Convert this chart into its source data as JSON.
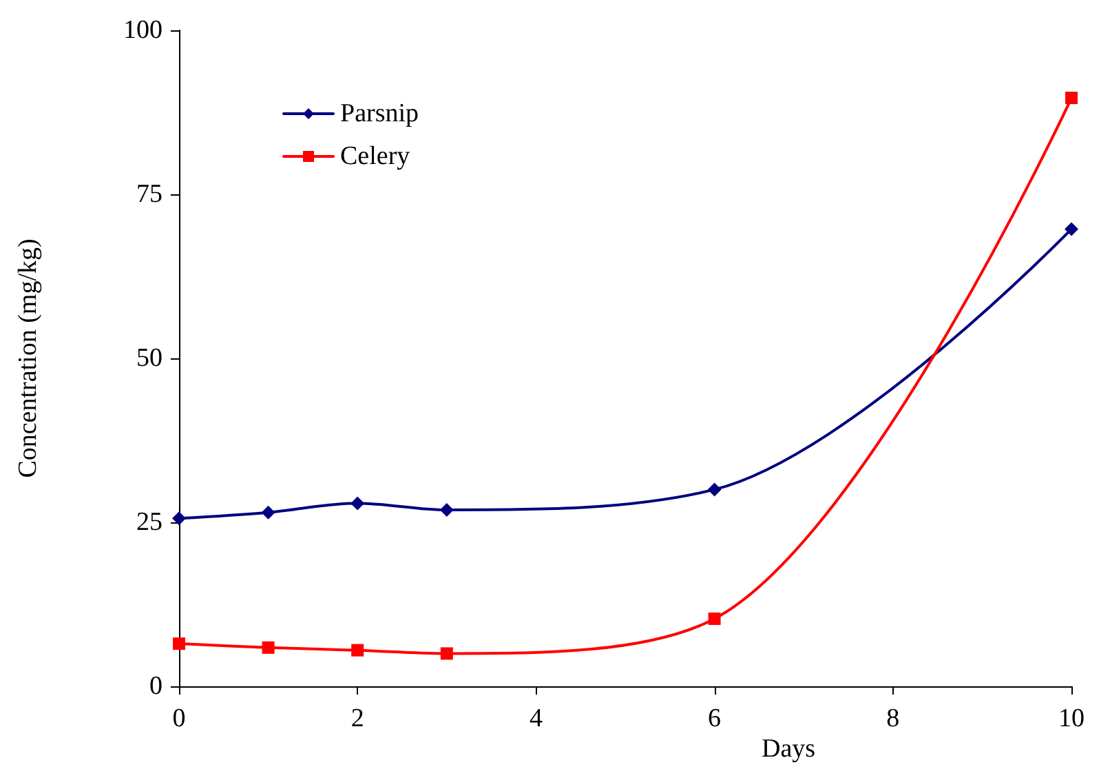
{
  "chart_data": {
    "type": "line",
    "xlabel": "Days",
    "ylabel": "Concentration (mg/kg)",
    "x": [
      0,
      1,
      2,
      3,
      6,
      10
    ],
    "series": [
      {
        "name": "Parsnip",
        "color": "#000080",
        "marker": "diamond",
        "values": [
          25.6,
          26.5,
          27.9,
          26.9,
          30.0,
          69.7
        ]
      },
      {
        "name": "Celery",
        "color": "#ff0000",
        "marker": "square",
        "values": [
          6.5,
          5.9,
          5.5,
          5.0,
          10.3,
          89.7
        ]
      }
    ],
    "xlim": [
      0,
      10
    ],
    "xticks": [
      0,
      2,
      4,
      6,
      8,
      10
    ],
    "ylim": [
      0,
      100
    ],
    "yticks": [
      0,
      25,
      50,
      75,
      100
    ],
    "grid": false,
    "legend": "top left",
    "line_style": "solid"
  }
}
